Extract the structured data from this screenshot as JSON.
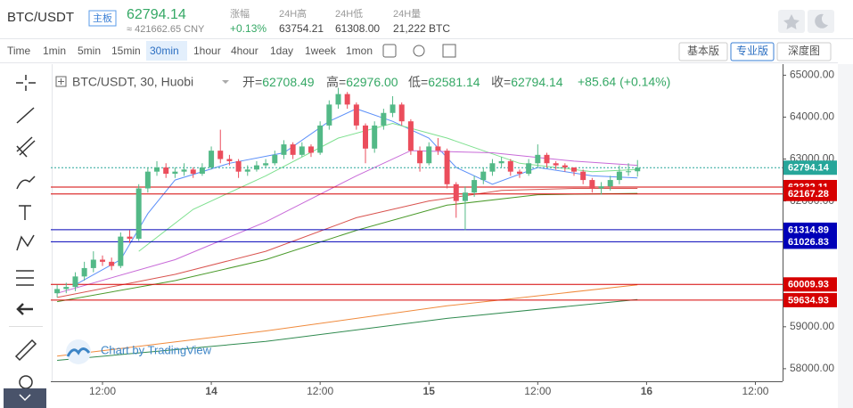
{
  "header": {
    "pair": "BTC/USDT",
    "board": "主板",
    "price": "62794.14",
    "cny": "≈ 421662.65 CNY",
    "stats": [
      {
        "label": "涨幅",
        "value": "+0.13%"
      },
      {
        "label": "24H高",
        "value": "63754.21"
      },
      {
        "label": "24H低",
        "value": "61308.00"
      },
      {
        "label": "24H量",
        "value": "21,222 BTC"
      }
    ]
  },
  "toolbar": {
    "intervals": [
      "Time",
      "1min",
      "5min",
      "15min",
      "30min",
      "1hour",
      "4hour",
      "1day",
      "1week",
      "1mon"
    ],
    "active": 4,
    "views": [
      "基本版",
      "专业版",
      "深度图"
    ],
    "active_view": 1
  },
  "chart_data": {
    "type": "candlestick",
    "title": "BTC/USDT, 30, Huobi",
    "legend": [
      {
        "label": "开=",
        "value": "62708.49"
      },
      {
        "label": "高=",
        "value": "62976.00"
      },
      {
        "label": "低=",
        "value": "62581.14"
      },
      {
        "label": "收=",
        "value": "62794.14"
      }
    ],
    "change": "+85.64 (+0.14%)",
    "watermark": "Chart by TradingView",
    "up_color": "#53b987",
    "down_color": "#eb4d5c",
    "x": [
      7,
      8,
      9,
      10,
      11,
      12,
      13,
      14,
      15,
      16,
      17,
      18,
      19,
      20,
      21,
      22,
      23,
      24,
      25,
      26,
      27,
      28,
      29,
      30,
      31,
      32,
      33,
      34,
      35,
      36,
      37,
      38,
      39,
      40,
      41,
      42,
      43,
      44,
      45,
      46,
      47,
      48,
      49,
      50,
      51,
      52,
      53,
      54,
      55,
      56,
      57,
      58,
      59,
      60,
      61,
      62,
      63,
      64,
      65,
      66,
      67,
      68,
      69,
      70,
      71
    ],
    "open": [
      59800,
      59900,
      59950,
      60200,
      60400,
      60600,
      60550,
      60450,
      61150,
      61100,
      62300,
      62700,
      62800,
      62650,
      62700,
      62750,
      62650,
      62800,
      63200,
      63000,
      62950,
      62700,
      62750,
      62850,
      62900,
      63100,
      63350,
      63100,
      63300,
      63150,
      63800,
      64300,
      64550,
      64300,
      63800,
      63250,
      63800,
      64100,
      64300,
      63900,
      63200,
      62900,
      63300,
      63200,
      62400,
      62000,
      62200,
      62500,
      62700,
      62900,
      62950,
      62700,
      62650,
      62900,
      63100,
      62900,
      62850,
      62800,
      62700,
      62500,
      62300,
      62350,
      62500,
      62700,
      62708.49
    ],
    "high": [
      60000,
      60050,
      60300,
      60550,
      60800,
      60700,
      60650,
      61250,
      61300,
      62400,
      62800,
      62950,
      62900,
      62800,
      62900,
      62800,
      62900,
      63300,
      63700,
      63100,
      63000,
      62850,
      62950,
      63000,
      63200,
      63450,
      63400,
      63400,
      63350,
      63900,
      64400,
      64700,
      64600,
      64350,
      63850,
      63900,
      64200,
      64500,
      64350,
      63950,
      63300,
      63400,
      63500,
      63250,
      62450,
      62350,
      62600,
      62800,
      63000,
      63050,
      63000,
      62750,
      63000,
      63350,
      63150,
      62950,
      62900,
      62800,
      62750,
      62550,
      62450,
      62600,
      62850,
      62900,
      62976
    ],
    "low": [
      59700,
      59800,
      59850,
      60100,
      60300,
      60450,
      60350,
      60400,
      61000,
      61050,
      62200,
      62600,
      62550,
      62550,
      62600,
      62550,
      62600,
      62750,
      62900,
      62850,
      62550,
      62600,
      62700,
      62800,
      62850,
      63000,
      63000,
      63050,
      63050,
      63100,
      63700,
      64200,
      64200,
      63700,
      62900,
      63150,
      63700,
      64000,
      63800,
      63100,
      62700,
      62850,
      63100,
      62300,
      61600,
      61300,
      62100,
      62400,
      62600,
      62800,
      62600,
      62550,
      62600,
      62800,
      62800,
      62750,
      62700,
      62600,
      62400,
      62200,
      62150,
      62250,
      62400,
      62600,
      62581.14
    ],
    "close": [
      59900,
      59950,
      60200,
      60400,
      60600,
      60550,
      60450,
      61150,
      61100,
      62300,
      62700,
      62800,
      62650,
      62700,
      62750,
      62650,
      62800,
      63200,
      63000,
      62950,
      62700,
      62750,
      62850,
      62900,
      63100,
      63350,
      63100,
      63300,
      63150,
      63800,
      64300,
      64550,
      64300,
      63800,
      63250,
      63800,
      64100,
      64300,
      63900,
      63200,
      62900,
      63300,
      63200,
      62400,
      62000,
      62200,
      62500,
      62700,
      62900,
      62950,
      62700,
      62650,
      62900,
      63100,
      62900,
      62850,
      62800,
      62700,
      62500,
      62300,
      62350,
      62500,
      62700,
      62708.49,
      62794.14
    ],
    "series": [
      {
        "color": "#5b8ff9",
        "x": [
          9,
          14,
          17,
          20,
          26,
          32,
          37,
          40,
          44,
          48,
          51,
          55,
          60,
          66,
          71
        ],
        "values": [
          60000,
          60600,
          61700,
          62500,
          62900,
          63150,
          63900,
          64200,
          63900,
          63500,
          62800,
          62400,
          62800,
          62600,
          62550
        ]
      },
      {
        "color": "#7ee08f",
        "x": [
          16,
          22,
          30,
          38,
          44,
          50,
          58,
          66,
          71
        ],
        "values": [
          60800,
          61800,
          62600,
          63500,
          63850,
          63500,
          62900,
          62700,
          62750
        ]
      },
      {
        "color": "#c86ad8",
        "x": [
          7,
          20,
          30,
          40,
          46,
          55,
          64,
          71
        ],
        "values": [
          59800,
          60600,
          61500,
          62600,
          63200,
          63150,
          62950,
          62850
        ]
      },
      {
        "color": "#d9534f",
        "x": [
          7,
          20,
          30,
          40,
          48,
          56,
          64,
          71
        ],
        "values": [
          59700,
          60250,
          60800,
          61600,
          62000,
          62250,
          62300,
          62300
        ]
      },
      {
        "color": "#4a9a2a",
        "x": [
          7,
          20,
          30,
          40,
          50,
          60,
          71
        ],
        "values": [
          59600,
          60100,
          60600,
          61300,
          61900,
          62150,
          62180
        ]
      },
      {
        "color": "#f08a3c",
        "x": [
          7,
          30,
          50,
          71
        ],
        "values": [
          58300,
          58900,
          59500,
          60000
        ]
      },
      {
        "color": "#2f8a4f",
        "x": [
          7,
          30,
          50,
          71
        ],
        "values": [
          58200,
          58650,
          59200,
          59650
        ]
      }
    ],
    "levels": [
      {
        "value": 62332.11,
        "color": "#d60000"
      },
      {
        "value": 62167.28,
        "color": "#d60000"
      },
      {
        "value": 61314.89,
        "color": "#0000b8"
      },
      {
        "value": 61026.83,
        "color": "#0000b8"
      },
      {
        "value": 60009.93,
        "color": "#d60000"
      },
      {
        "value": 59634.93,
        "color": "#d60000"
      }
    ],
    "last_price": {
      "value": 62794.14,
      "color": "#26a69a"
    },
    "xlim": [
      6.3,
      87
    ],
    "ylim": [
      57700,
      65200
    ],
    "xticks": [
      {
        "value": 12,
        "label": "12:00"
      },
      {
        "value": 24,
        "label": "14"
      },
      {
        "value": 36,
        "label": "12:00"
      },
      {
        "value": 48,
        "label": "15"
      },
      {
        "value": 60,
        "label": "12:00"
      },
      {
        "value": 72,
        "label": "16"
      },
      {
        "value": 84,
        "label": "12:00"
      }
    ],
    "yticks": [
      {
        "value": 58000,
        "label": "58000.00"
      },
      {
        "value": 59000,
        "label": "59000.00"
      },
      {
        "value": 60000,
        "label": "60000.00"
      },
      {
        "value": 61000,
        "label": "61000.00"
      },
      {
        "value": 62000,
        "label": "62000.00"
      },
      {
        "value": 63000,
        "label": "63000.00"
      },
      {
        "value": 64000,
        "label": "64000.00"
      },
      {
        "value": 65000,
        "label": "65000.00"
      }
    ]
  }
}
